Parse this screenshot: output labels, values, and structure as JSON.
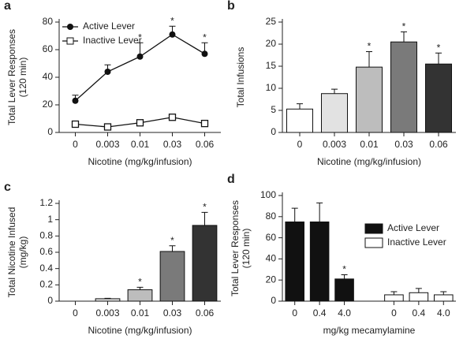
{
  "chart_data": [
    {
      "type": "line",
      "panel": "a",
      "ylabel": [
        "Total Lever Responses",
        "(120 min)"
      ],
      "xlabel": "Nicotine (mg/kg/infusion)",
      "categories": [
        "0",
        "0.003",
        "0.01",
        "0.03",
        "0.06"
      ],
      "ylim": [
        0,
        80
      ],
      "yticks": [
        0,
        20,
        40,
        60,
        80
      ],
      "legend": "upper left",
      "series": [
        {
          "name": "Active Lever",
          "color": "#111111",
          "marker": "circle",
          "values": [
            23,
            44,
            55,
            71,
            57
          ],
          "errors": [
            4,
            5,
            10,
            6,
            8
          ]
        },
        {
          "name": "Inactive Lever",
          "color": "#111111",
          "marker": "square",
          "values": [
            6,
            4,
            7,
            11,
            6.5
          ],
          "errors": [
            1.5,
            1,
            1.5,
            1.5,
            1
          ]
        }
      ],
      "markers": [
        null,
        null,
        "*",
        "*",
        "*"
      ]
    },
    {
      "type": "bar",
      "panel": "b",
      "ylabel": [
        "Total Infusions"
      ],
      "xlabel": "Nicotine (mg/kg/infusion)",
      "categories": [
        "0",
        "0.003",
        "0.01",
        "0.03",
        "0.06"
      ],
      "ylim": [
        0,
        25
      ],
      "yticks": [
        0,
        5,
        10,
        15,
        20,
        25
      ],
      "values": [
        5.3,
        8.8,
        14.8,
        20.5,
        15.5
      ],
      "errors": [
        1.2,
        1.0,
        3.5,
        2.3,
        2.5
      ],
      "colors": [
        "#ffffff",
        "#e2e2e2",
        "#bdbdbd",
        "#7a7a7a",
        "#333333"
      ],
      "markers": [
        null,
        null,
        "*",
        "*",
        "*"
      ]
    },
    {
      "type": "bar",
      "panel": "c",
      "ylabel": [
        "Total Nicotine Infused",
        "(mg/kg)"
      ],
      "xlabel": "Nicotine (mg/kg/infusion)",
      "categories": [
        "0",
        "0.003",
        "0.01",
        "0.03",
        "0.06"
      ],
      "ylim": [
        0,
        1.2
      ],
      "yticks": [
        0,
        0.2,
        0.4,
        0.6,
        0.8,
        1,
        1.2
      ],
      "values": [
        0,
        0.03,
        0.14,
        0.61,
        0.93
      ],
      "errors": [
        0,
        0.005,
        0.03,
        0.07,
        0.16
      ],
      "colors": [
        "#ffffff",
        "#e2e2e2",
        "#bdbdbd",
        "#7a7a7a",
        "#333333"
      ],
      "markers": [
        null,
        null,
        "*",
        "*",
        "*"
      ]
    },
    {
      "type": "bar",
      "panel": "d",
      "ylabel": [
        "Total Lever Responses",
        "(120 min)"
      ],
      "xlabel": "mg/kg mecamylamine",
      "categories": [
        "0",
        "0.4",
        "4.0"
      ],
      "ylim": [
        0,
        100
      ],
      "yticks": [
        0,
        20,
        40,
        60,
        80,
        100
      ],
      "legend": "upper right",
      "series": [
        {
          "name": "Active Lever",
          "color": "#111111",
          "values": [
            75,
            75,
            21
          ],
          "errors": [
            13,
            18,
            4
          ],
          "markers": [
            null,
            null,
            "*"
          ]
        },
        {
          "name": "Inactive Lever",
          "color": "#ffffff",
          "values": [
            6,
            8,
            6
          ],
          "errors": [
            3,
            4,
            3
          ]
        }
      ]
    }
  ]
}
